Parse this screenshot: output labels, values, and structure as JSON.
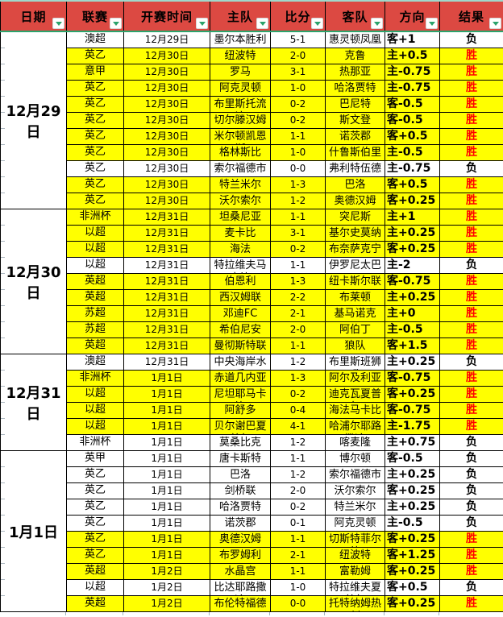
{
  "table": {
    "headers": [
      {
        "label": "日期"
      },
      {
        "label": "联赛"
      },
      {
        "label": "开赛时间"
      },
      {
        "label": "主队"
      },
      {
        "label": "比分"
      },
      {
        "label": "客队"
      },
      {
        "label": "方向"
      },
      {
        "label": "结果"
      }
    ],
    "filter_icon": "filter-dropdown-arrow",
    "groups": [
      {
        "date": "12月29日",
        "rows": [
          {
            "league": "澳超",
            "time": "12月29日",
            "home": "墨尔本胜利",
            "score": "5-1",
            "away": "惠灵顿凤凰",
            "direction": "客+1",
            "result": "负",
            "win": false
          },
          {
            "league": "英乙",
            "time": "12月30日",
            "home": "纽波特",
            "score": "2-0",
            "away": "克鲁",
            "direction": "主+0.5",
            "result": "胜",
            "win": true
          },
          {
            "league": "意甲",
            "time": "12月30日",
            "home": "罗马",
            "score": "3-1",
            "away": "热那亚",
            "direction": "主-0.75",
            "result": "胜",
            "win": true
          },
          {
            "league": "英乙",
            "time": "12月30日",
            "home": "阿克灵顿",
            "score": "1-0",
            "away": "哈洛贾特",
            "direction": "主-0.75",
            "result": "胜",
            "win": true
          },
          {
            "league": "英乙",
            "time": "12月30日",
            "home": "布里斯托流浪",
            "score": "0-2",
            "away": "巴尼特",
            "direction": "客-0.5",
            "result": "胜",
            "win": true
          },
          {
            "league": "英乙",
            "time": "12月30日",
            "home": "切尔滕汉姆",
            "score": "0-2",
            "away": "斯文登",
            "direction": "客-0.5",
            "result": "胜",
            "win": true
          },
          {
            "league": "英乙",
            "time": "12月30日",
            "home": "米尔顿凯恩斯",
            "score": "1-1",
            "away": "诺茨郡",
            "direction": "客+0.5",
            "result": "胜",
            "win": true
          },
          {
            "league": "英乙",
            "time": "12月30日",
            "home": "格林斯比",
            "score": "1-0",
            "away": "什鲁斯伯里",
            "direction": "主-0.5",
            "result": "胜",
            "win": true
          },
          {
            "league": "英乙",
            "time": "12月30日",
            "home": "索尔福德市",
            "score": "0-0",
            "away": "弗利特伍德",
            "direction": "主-0.75",
            "result": "负",
            "win": false
          },
          {
            "league": "英乙",
            "time": "12月30日",
            "home": "特兰米尔",
            "score": "1-3",
            "away": "巴洛",
            "direction": "客+0.5",
            "result": "胜",
            "win": true
          },
          {
            "league": "英乙",
            "time": "12月30日",
            "home": "沃尔索尔",
            "score": "1-2",
            "away": "奥德汉姆",
            "direction": "客+0.25",
            "result": "胜",
            "win": true
          }
        ]
      },
      {
        "date": "12月30日",
        "rows": [
          {
            "league": "非洲杯",
            "time": "12月31日",
            "home": "坦桑尼亚",
            "score": "1-1",
            "away": "突尼斯",
            "direction": "主+1",
            "result": "胜",
            "win": true
          },
          {
            "league": "以超",
            "time": "12月31日",
            "home": "麦卡比",
            "score": "3-1",
            "away": "基尔史莫纳",
            "direction": "主+0.25",
            "result": "胜",
            "win": true
          },
          {
            "league": "以超",
            "time": "12月31日",
            "home": "海法",
            "score": "0-2",
            "away": "布奈萨克宁",
            "direction": "客+0.25",
            "result": "胜",
            "win": true
          },
          {
            "league": "以超",
            "time": "12月31日",
            "home": "特拉维夫马卡比",
            "score": "1-1",
            "away": "伊罗尼太巴",
            "direction": "主-2",
            "result": "负",
            "win": false
          },
          {
            "league": "英超",
            "time": "12月31日",
            "home": "伯恩利",
            "score": "1-3",
            "away": "纽卡斯尔联",
            "direction": "客-0.75",
            "result": "胜",
            "win": true
          },
          {
            "league": "英超",
            "time": "12月31日",
            "home": "西汉姆联",
            "score": "2-2",
            "away": "布莱顿",
            "direction": "主+0.25",
            "result": "胜",
            "win": true
          },
          {
            "league": "苏超",
            "time": "12月31日",
            "home": "邓迪FC",
            "score": "2-1",
            "away": "基马诺克",
            "direction": "主+0",
            "result": "胜",
            "win": true
          },
          {
            "league": "苏超",
            "time": "12月31日",
            "home": "希伯尼安",
            "score": "2-0",
            "away": "阿伯丁",
            "direction": "主-0.5",
            "result": "胜",
            "win": true
          },
          {
            "league": "英超",
            "time": "12月31日",
            "home": "曼彻斯特联",
            "score": "1-1",
            "away": "狼队",
            "direction": "客+1.5",
            "result": "胜",
            "win": true
          }
        ]
      },
      {
        "date": "12月31日",
        "rows": [
          {
            "league": "澳超",
            "time": "12月31日",
            "home": "中央海岸水手",
            "score": "1-2",
            "away": "布里斯班狮吼",
            "direction": "主+0.25",
            "result": "负",
            "win": false
          },
          {
            "league": "非洲杯",
            "time": "1月1日",
            "home": "赤道几内亚",
            "score": "1-3",
            "away": "阿尔及利亚",
            "direction": "客-0.75",
            "result": "胜",
            "win": true
          },
          {
            "league": "以超",
            "time": "1月1日",
            "home": "尼坦耶马卡比",
            "score": "0-2",
            "away": "迪克瓦夏普尔",
            "direction": "客+0.25",
            "result": "胜",
            "win": true
          },
          {
            "league": "以超",
            "time": "1月1日",
            "home": "阿舒多",
            "score": "0-4",
            "away": "海法马卡比",
            "direction": "客-0.75",
            "result": "胜",
            "win": true
          },
          {
            "league": "以超",
            "time": "1月1日",
            "home": "贝尔谢巴夏普尔",
            "score": "4-1",
            "away": "哈浦尔耶路撒冷",
            "direction": "主-1.75",
            "result": "胜",
            "win": true
          },
          {
            "league": "非洲杯",
            "time": "1月1日",
            "home": "莫桑比克",
            "score": "1-2",
            "away": "喀麦隆",
            "direction": "主+0.75",
            "result": "负",
            "win": false
          }
        ]
      },
      {
        "date": "1月1日",
        "rows": [
          {
            "league": "英甲",
            "time": "1月1日",
            "home": "唐卡斯特",
            "score": "1-1",
            "away": "博尔顿",
            "direction": "客-0.5",
            "result": "负",
            "win": false
          },
          {
            "league": "英乙",
            "time": "1月1日",
            "home": "巴洛",
            "score": "1-2",
            "away": "索尔福德市",
            "direction": "主+0.25",
            "result": "负",
            "win": false
          },
          {
            "league": "英乙",
            "time": "1月1日",
            "home": "剑桥联",
            "score": "2-0",
            "away": "沃尔索尔",
            "direction": "客+0.25",
            "result": "负",
            "win": false
          },
          {
            "league": "英乙",
            "time": "1月1日",
            "home": "哈洛贾特",
            "score": "0-2",
            "away": "特兰米尔",
            "direction": "主+0.25",
            "result": "负",
            "win": false
          },
          {
            "league": "英乙",
            "time": "1月1日",
            "home": "诺茨郡",
            "score": "0-1",
            "away": "阿克灵顿",
            "direction": "主-0.5",
            "result": "负",
            "win": false
          },
          {
            "league": "英乙",
            "time": "1月1日",
            "home": "奥德汉姆",
            "score": "1-1",
            "away": "切斯特菲尔德",
            "direction": "客+0.25",
            "result": "胜",
            "win": true
          },
          {
            "league": "英乙",
            "time": "1月1日",
            "home": "布罗姆利",
            "score": "2-1",
            "away": "纽波特",
            "direction": "客+1.25",
            "result": "胜",
            "win": true
          },
          {
            "league": "英超",
            "time": "1月2日",
            "home": "水晶宫",
            "score": "1-1",
            "away": "富勒姆",
            "direction": "客+0.25",
            "result": "胜",
            "win": true
          },
          {
            "league": "以超",
            "time": "1月2日",
            "home": "比达耶路撒冷",
            "score": "1-0",
            "away": "特拉维夫夏普尔",
            "direction": "客+0.5",
            "result": "负",
            "win": false
          },
          {
            "league": "英超",
            "time": "1月2日",
            "home": "布伦特福德",
            "score": "0-0",
            "away": "托特纳姆热刺",
            "direction": "客+0.25",
            "result": "胜",
            "win": true
          }
        ]
      }
    ]
  },
  "colors": {
    "header_bg": "#DC4942",
    "accent_green": "#2BA36B",
    "win_row_bg": "#FFFF00",
    "lose_row_bg": "#FFFFFF",
    "win_text": "#FF0000",
    "border": "#000000"
  }
}
